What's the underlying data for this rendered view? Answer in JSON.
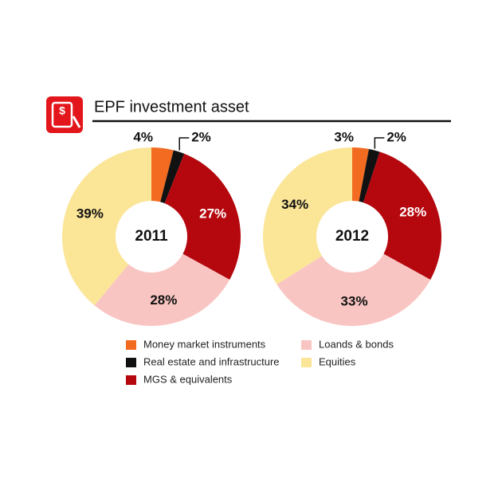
{
  "chart_data": {
    "type": "donut",
    "title": "EPF investment asset",
    "categories": [
      "Money market instruments",
      "Real estate and infrastructure",
      "MGS & equivalents",
      "Loands & bonds",
      "Equities"
    ],
    "colors": [
      "#f26b21",
      "#111111",
      "#b5070e",
      "#f9c5c2",
      "#fbe597"
    ],
    "series": [
      {
        "name": "2011",
        "values": [
          4,
          2,
          27,
          28,
          39
        ],
        "value_labels": [
          "4%",
          "2%",
          "27%",
          "28%",
          "39%"
        ]
      },
      {
        "name": "2012",
        "values": [
          3,
          2,
          28,
          33,
          34
        ],
        "value_labels": [
          "3%",
          "2%",
          "28%",
          "33%",
          "34%"
        ]
      }
    ]
  }
}
